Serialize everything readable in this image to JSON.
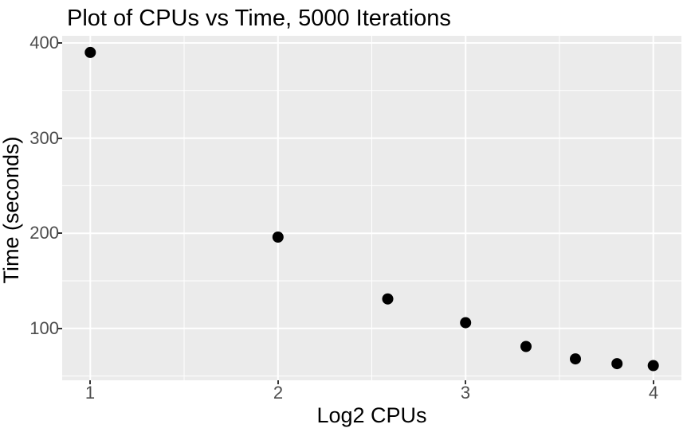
{
  "chart_data": {
    "type": "scatter",
    "title": "Plot of CPUs vs Time, 5000 Iterations",
    "xlabel": "Log2 CPUs",
    "ylabel": "Time (seconds)",
    "x": [
      1,
      2,
      2.585,
      3,
      3.322,
      3.585,
      3.807,
      4
    ],
    "y": [
      390,
      196,
      131,
      106,
      81,
      68,
      63,
      61
    ],
    "xlim": [
      0.85,
      4.15
    ],
    "ylim": [
      45.5,
      407.5
    ],
    "x_major_ticks": [
      1,
      2,
      3,
      4
    ],
    "x_minor_ticks": [
      1.5,
      2.5,
      3.5
    ],
    "y_major_ticks": [
      100,
      200,
      300,
      400
    ],
    "y_minor_ticks": [
      50,
      150,
      250,
      350
    ],
    "grid": "on",
    "legend": "none",
    "style": {
      "panel_bg": "#EBEBEB",
      "plot_bg": "#FFFFFF",
      "grid_major_color": "#FFFFFF",
      "grid_minor_color": "#FFFFFF",
      "point_color": "#000000",
      "point_radius": 7,
      "tick_label_color": "#4D4D4D",
      "tick_mark_color": "#333333",
      "title_color": "#000000"
    }
  }
}
